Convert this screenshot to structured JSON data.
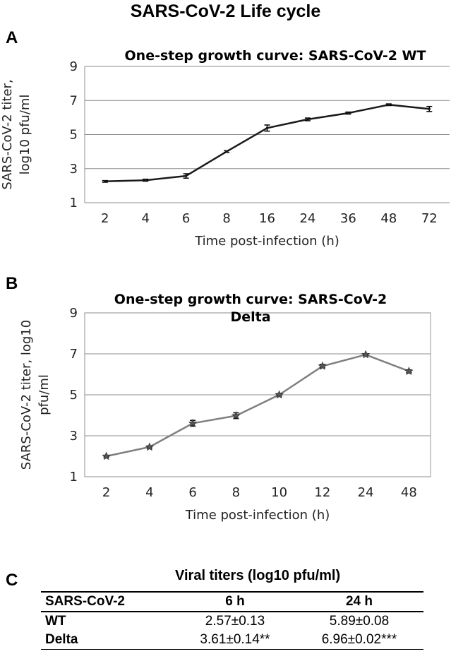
{
  "page_title": "SARS-CoV-2 Life cycle",
  "chart_data": [
    {
      "panel": "A",
      "type": "line",
      "title": "One-step growth curve: SARS-CoV-2 WT",
      "xlabel": "Time post-infection (h)",
      "ylabel": [
        "SARS-CoV-2 titer,",
        "log10 pfu/ml"
      ],
      "categories": [
        "2",
        "4",
        "6",
        "8",
        "16",
        "24",
        "36",
        "48",
        "72"
      ],
      "series": [
        {
          "name": "SARS-CoV-2 WT",
          "values": [
            2.25,
            2.32,
            2.57,
            4.0,
            5.38,
            5.89,
            6.26,
            6.75,
            6.5
          ],
          "errors": [
            0.05,
            0.06,
            0.13,
            0.05,
            0.18,
            0.08,
            0.06,
            0.05,
            0.15
          ],
          "color": "#1a1a1a"
        }
      ],
      "ylim": [
        1,
        9
      ],
      "yticks": [
        1,
        3,
        5,
        7,
        9
      ],
      "grid": true,
      "marker": "none"
    },
    {
      "panel": "B",
      "type": "line",
      "title": [
        "One-step growth curve: SARS-CoV-2",
        "Delta"
      ],
      "xlabel": "Time post-infection (h)",
      "ylabel": [
        "SARS-CoV-2 titer, log10",
        "pfu/ml"
      ],
      "categories": [
        "2",
        "4",
        "6",
        "8",
        "10",
        "12",
        "24",
        "48"
      ],
      "series": [
        {
          "name": "SARS-CoV-2 Delta",
          "values": [
            2.0,
            2.45,
            3.61,
            3.98,
            5.0,
            6.4,
            6.96,
            6.15
          ],
          "errors": [
            0.04,
            0.05,
            0.14,
            0.14,
            0.06,
            0.08,
            0.02,
            0.07
          ],
          "color": "#7f7f7f"
        }
      ],
      "ylim": [
        1,
        9
      ],
      "yticks": [
        1,
        3,
        5,
        7,
        9
      ],
      "grid": true,
      "marker": "star"
    }
  ],
  "table": {
    "panel": "C",
    "super_header": "Viral titers (log10 pfu/ml)",
    "columns": [
      "SARS-CoV-2",
      "6 h",
      "24 h"
    ],
    "rows": [
      [
        "WT",
        "2.57±0.13",
        "5.89±0.08"
      ],
      [
        "Delta",
        "3.61±0.14**",
        "6.96±0.02***"
      ]
    ]
  }
}
